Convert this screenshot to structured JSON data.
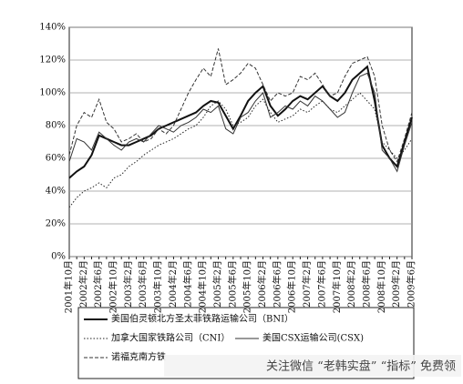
{
  "chart_data": {
    "type": "line",
    "categories": [
      "2001年10月",
      null,
      "2002年2月",
      null,
      "2002年6月",
      null,
      "2002年10月",
      null,
      "2003年2月",
      null,
      "2003年6月",
      null,
      "2003年10月",
      null,
      "2004年2月",
      null,
      "2004年6月",
      null,
      "2004年10月",
      null,
      "2005年2月",
      null,
      "2005年6月",
      null,
      "2005年10月",
      null,
      "2006年2月",
      null,
      "2006年6月",
      null,
      "2006年10月",
      null,
      "2007年2月",
      null,
      "2007年6月",
      null,
      "2007年10月",
      null,
      "2008年2月",
      null,
      "2008年6月",
      null,
      "2008年10月",
      null,
      "2009年2月",
      null,
      "2009年6月"
    ],
    "series": [
      {
        "name": "美国伯灵顿北方圣太菲铁路运输公司（BNI）",
        "color": "#111111",
        "dash": "solid",
        "width": 2,
        "values": [
          48,
          52,
          55,
          62,
          74,
          72,
          70,
          68,
          68,
          70,
          72,
          74,
          78,
          80,
          82,
          84,
          86,
          88,
          92,
          95,
          94,
          86,
          78,
          86,
          95,
          100,
          104,
          92,
          86,
          90,
          95,
          98,
          96,
          100,
          104,
          98,
          95,
          100,
          108,
          112,
          116,
          95,
          68,
          60,
          55,
          70,
          85
        ]
      },
      {
        "name": "加拿大国家铁路公司（CNI）",
        "color": "#222222",
        "dash": "dotted",
        "width": 1,
        "values": [
          30,
          36,
          40,
          42,
          45,
          42,
          48,
          50,
          55,
          58,
          62,
          65,
          68,
          70,
          72,
          75,
          78,
          80,
          85,
          92,
          95,
          90,
          80,
          82,
          85,
          92,
          96,
          88,
          82,
          84,
          86,
          90,
          88,
          92,
          95,
          90,
          88,
          92,
          96,
          100,
          95,
          90,
          70,
          65,
          60,
          65,
          72
        ]
      },
      {
        "name": "美国CSX运输公司(CSX)",
        "color": "#333333",
        "dash": "solid",
        "width": 1,
        "values": [
          58,
          72,
          70,
          65,
          76,
          72,
          68,
          65,
          70,
          72,
          70,
          75,
          80,
          78,
          76,
          80,
          82,
          85,
          90,
          88,
          92,
          78,
          75,
          85,
          88,
          95,
          100,
          85,
          88,
          92,
          90,
          95,
          92,
          98,
          95,
          90,
          85,
          88,
          100,
          110,
          112,
          100,
          65,
          60,
          52,
          68,
          82
        ]
      },
      {
        "name": "诺福克南方铁",
        "color": "#333333",
        "dash": "dashed",
        "width": 1,
        "values": [
          62,
          80,
          88,
          85,
          96,
          82,
          78,
          70,
          72,
          75,
          70,
          72,
          78,
          75,
          80,
          90,
          100,
          108,
          115,
          110,
          127,
          105,
          108,
          112,
          118,
          115,
          105,
          95,
          100,
          98,
          100,
          110,
          108,
          112,
          105,
          98,
          100,
          110,
          118,
          120,
          122,
          110,
          80,
          65,
          58,
          72,
          88
        ]
      }
    ],
    "ylim": [
      0,
      140
    ],
    "yticks": [
      {
        "value": 0,
        "label": "0%"
      },
      {
        "value": 20,
        "label": "20%"
      },
      {
        "value": 40,
        "label": "40%"
      },
      {
        "value": 60,
        "label": "60%"
      },
      {
        "value": 80,
        "label": "80%"
      },
      {
        "value": 100,
        "label": "100%"
      },
      {
        "value": 120,
        "label": "120%"
      },
      {
        "value": 140,
        "label": "140%"
      }
    ],
    "grid": true
  },
  "watermark": "关注微信 “老韩实盘” “指标” 免费领"
}
